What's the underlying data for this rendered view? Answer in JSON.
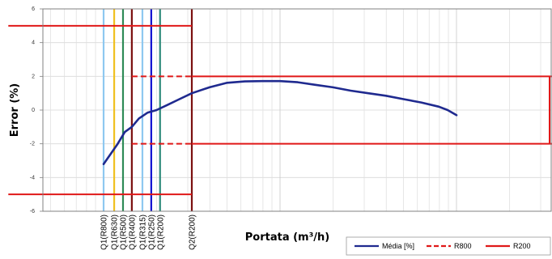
{
  "chart_data": {
    "type": "line",
    "title": "",
    "xlabel": "Portata (m³/h)",
    "ylabel": "Error (%)",
    "x_scale": "log",
    "x_tick_labels": false,
    "ylim": [
      -6,
      6
    ],
    "y_ticks": [
      -6,
      -4,
      -2,
      0,
      2,
      4,
      6
    ],
    "grid": true,
    "legend_position": "bottom-right",
    "series": [
      {
        "name": "Média [%]",
        "color": "#1f2a8f",
        "style": "solid",
        "points": [
          [
            0.0,
            -3.2
          ],
          [
            0.04,
            -2.6
          ],
          [
            0.08,
            -2.0
          ],
          [
            0.12,
            -1.3
          ],
          [
            0.16,
            -1.0
          ],
          [
            0.2,
            -0.5
          ],
          [
            0.25,
            -0.15
          ],
          [
            0.3,
            0.0
          ],
          [
            0.36,
            0.3
          ],
          [
            0.42,
            0.6
          ],
          [
            0.5,
            1.0
          ],
          [
            0.6,
            1.35
          ],
          [
            0.7,
            1.62
          ],
          [
            0.8,
            1.7
          ],
          [
            0.9,
            1.72
          ],
          [
            1.0,
            1.72
          ],
          [
            1.1,
            1.65
          ],
          [
            1.2,
            1.5
          ],
          [
            1.3,
            1.35
          ],
          [
            1.4,
            1.15
          ],
          [
            1.5,
            1.0
          ],
          [
            1.6,
            0.85
          ],
          [
            1.7,
            0.65
          ],
          [
            1.8,
            0.45
          ],
          [
            1.9,
            0.2
          ],
          [
            1.95,
            0.0
          ],
          [
            2.0,
            -0.3
          ]
        ]
      },
      {
        "name": "R800",
        "color": "#e01818",
        "style": "dashed",
        "segments": [
          {
            "x": [
              0.16,
              0.5
            ],
            "y": 2
          },
          {
            "x": [
              0.16,
              0.5
            ],
            "y": -2
          }
        ]
      },
      {
        "name": "R200",
        "color": "#e01818",
        "style": "solid",
        "segments": [
          {
            "x": [
              -0.54,
              0.5
            ],
            "y": 5
          },
          {
            "x": [
              -0.54,
              0.5
            ],
            "y": -5
          },
          {
            "x": [
              0.5,
              3.0
            ],
            "y": 2
          },
          {
            "x": [
              0.5,
              3.0
            ],
            "y": -2
          }
        ]
      }
    ],
    "vertical_lines": [
      {
        "label": "Q1(R800)",
        "x": 0.0,
        "color": "#8ec8f0"
      },
      {
        "label": "Q1(R630)",
        "x": 0.06,
        "color": "#f0c020"
      },
      {
        "label": "Q1(R500)",
        "x": 0.11,
        "color": "#2e8b57"
      },
      {
        "label": "Q1(R400)",
        "x": 0.16,
        "color": "#7b1010"
      },
      {
        "label": "Q1(R315)",
        "x": 0.22,
        "color": "#8ec8f0"
      },
      {
        "label": "Q1(R250)",
        "x": 0.27,
        "color": "#1010d0"
      },
      {
        "label": "Q1(R200)",
        "x": 0.32,
        "color": "#2e8b7b"
      },
      {
        "label": "Q2(R200)",
        "x": 0.5,
        "color": "#7b1010"
      }
    ],
    "legend": [
      {
        "label": "Média [%]",
        "color": "#1f2a8f",
        "style": "solid"
      },
      {
        "label": "R800",
        "color": "#e01818",
        "style": "dashed"
      },
      {
        "label": "R200",
        "color": "#e01818",
        "style": "solid"
      }
    ]
  }
}
